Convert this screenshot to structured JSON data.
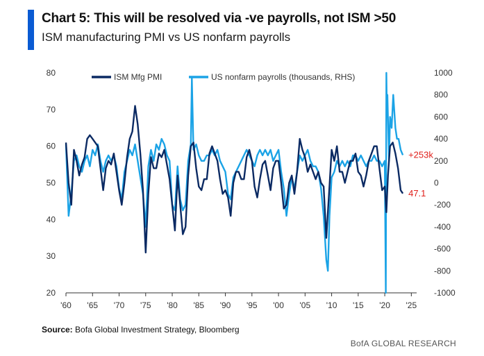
{
  "header": {
    "title": "Chart 5: This will be resolved via -ve payrolls, not ISM >50",
    "subtitle": "ISM manufacturing PMI vs US nonfarm payrolls"
  },
  "footer": {
    "source_label": "Source:",
    "source_text": "Bofa Global Investment Strategy, Bloomberg",
    "brand": "BofA GLOBAL RESEARCH"
  },
  "colors": {
    "ism": "#0b2a63",
    "payrolls": "#1ba3e6",
    "accent": "#0a5bd3",
    "annotation": "#e0201b"
  },
  "chart_data": {
    "type": "line",
    "legend_placement": "top",
    "grid": false,
    "x_ticks": [
      "'60",
      "'65",
      "'70",
      "'75",
      "'80",
      "'85",
      "'90",
      "'95",
      "'00",
      "'05",
      "'10",
      "'15",
      "'20",
      "'25"
    ],
    "y_left": {
      "ylim": [
        20,
        80
      ],
      "ticks": [
        "20",
        "30",
        "40",
        "50",
        "60",
        "70",
        "80"
      ]
    },
    "y_right": {
      "ylim": [
        -1000,
        1000
      ],
      "ticks": [
        "-1000",
        "-800",
        "-600",
        "-400",
        "-200",
        "0",
        "200",
        "400",
        "600",
        "800",
        "1000"
      ]
    },
    "xlim": [
      1960,
      2026
    ],
    "series": [
      {
        "name": "ISM Mfg PMI",
        "axis": "left",
        "x": [
          1960.0,
          1960.5,
          1961.0,
          1961.5,
          1962.0,
          1962.5,
          1963.0,
          1963.5,
          1964.0,
          1964.5,
          1965.0,
          1965.5,
          1966.0,
          1966.5,
          1967.0,
          1967.5,
          1968.0,
          1968.5,
          1969.0,
          1969.5,
          1970.0,
          1970.5,
          1971.0,
          1971.5,
          1972.0,
          1972.5,
          1973.0,
          1973.5,
          1974.0,
          1974.5,
          1975.0,
          1975.5,
          1976.0,
          1976.5,
          1977.0,
          1977.5,
          1978.0,
          1978.5,
          1979.0,
          1979.5,
          1980.0,
          1980.5,
          1981.0,
          1981.5,
          1982.0,
          1982.5,
          1983.0,
          1983.5,
          1984.0,
          1984.5,
          1985.0,
          1985.5,
          1986.0,
          1986.5,
          1987.0,
          1987.5,
          1988.0,
          1988.5,
          1989.0,
          1989.5,
          1990.0,
          1990.5,
          1991.0,
          1991.5,
          1992.0,
          1992.5,
          1993.0,
          1993.5,
          1994.0,
          1994.5,
          1995.0,
          1995.5,
          1996.0,
          1996.5,
          1997.0,
          1997.5,
          1998.0,
          1998.5,
          1999.0,
          1999.5,
          2000.0,
          2000.5,
          2001.0,
          2001.5,
          2002.0,
          2002.5,
          2003.0,
          2003.5,
          2004.0,
          2004.5,
          2005.0,
          2005.5,
          2006.0,
          2006.5,
          2007.0,
          2007.5,
          2008.0,
          2008.5,
          2009.0,
          2009.5,
          2010.0,
          2010.5,
          2011.0,
          2011.5,
          2012.0,
          2012.5,
          2013.0,
          2013.5,
          2014.0,
          2014.5,
          2015.0,
          2015.5,
          2016.0,
          2016.5,
          2017.0,
          2017.5,
          2018.0,
          2018.5,
          2019.0,
          2019.5,
          2020.0,
          2020.3,
          2020.6,
          2021.0,
          2021.5,
          2022.0,
          2022.5,
          2023.0,
          2023.4
        ],
        "values": [
          61,
          50,
          44,
          59,
          56,
          52,
          55,
          57,
          62,
          63,
          62,
          61,
          60,
          54,
          48,
          54,
          56,
          55,
          58,
          53,
          48,
          44,
          50,
          57,
          62,
          64,
          71,
          66,
          58,
          48,
          31,
          47,
          57,
          54,
          54,
          58,
          57,
          59,
          55,
          51,
          44,
          37,
          52,
          44,
          36,
          38,
          52,
          60,
          61,
          54,
          49,
          48,
          51,
          51,
          58,
          60,
          58,
          56,
          51,
          47,
          48,
          46,
          41,
          50,
          53,
          53,
          51,
          51,
          57,
          59,
          56,
          49,
          46,
          51,
          55,
          56,
          52,
          48,
          54,
          56,
          56,
          50,
          43,
          44,
          50,
          52,
          47,
          53,
          62,
          59,
          57,
          53,
          55,
          53,
          51,
          53,
          50,
          49,
          35,
          47,
          59,
          56,
          60,
          53,
          53,
          50,
          53,
          56,
          56,
          58,
          53,
          52,
          49,
          52,
          56,
          58,
          60,
          60,
          54,
          48,
          49,
          42,
          52,
          60,
          61,
          58,
          54,
          48,
          47.1
        ]
      },
      {
        "name": "US nonfarm payrolls (thousands, RHS)",
        "axis": "right",
        "x": [
          1960.0,
          1960.5,
          1961.0,
          1961.5,
          1962.0,
          1962.5,
          1963.0,
          1963.5,
          1964.0,
          1964.5,
          1965.0,
          1965.5,
          1966.0,
          1966.5,
          1967.0,
          1967.5,
          1968.0,
          1968.5,
          1969.0,
          1969.5,
          1970.0,
          1970.5,
          1971.0,
          1971.5,
          1972.0,
          1972.5,
          1973.0,
          1973.5,
          1974.0,
          1974.5,
          1975.0,
          1975.5,
          1976.0,
          1976.5,
          1977.0,
          1977.5,
          1978.0,
          1978.5,
          1979.0,
          1979.5,
          1980.0,
          1980.5,
          1981.0,
          1981.5,
          1982.0,
          1982.5,
          1983.0,
          1983.5,
          1983.7,
          1984.0,
          1984.5,
          1985.0,
          1985.5,
          1986.0,
          1986.5,
          1987.0,
          1987.5,
          1988.0,
          1988.5,
          1989.0,
          1989.5,
          1990.0,
          1990.5,
          1991.0,
          1991.5,
          1992.0,
          1992.5,
          1993.0,
          1993.5,
          1994.0,
          1994.5,
          1995.0,
          1995.5,
          1996.0,
          1996.5,
          1997.0,
          1997.5,
          1998.0,
          1998.5,
          1999.0,
          1999.5,
          2000.0,
          2000.5,
          2001.0,
          2001.5,
          2002.0,
          2002.5,
          2003.0,
          2003.5,
          2004.0,
          2004.5,
          2005.0,
          2005.5,
          2006.0,
          2006.5,
          2007.0,
          2007.5,
          2008.0,
          2008.5,
          2009.0,
          2009.3,
          2009.6,
          2010.0,
          2010.5,
          2011.0,
          2011.5,
          2012.0,
          2012.5,
          2013.0,
          2013.5,
          2014.0,
          2014.5,
          2015.0,
          2015.5,
          2016.0,
          2016.5,
          2017.0,
          2017.5,
          2018.0,
          2018.5,
          2019.0,
          2019.5,
          2020.0,
          2020.2,
          2020.3,
          2020.4,
          2020.5,
          2020.8,
          2021.0,
          2021.3,
          2021.6,
          2022.0,
          2022.3,
          2022.6,
          2023.0,
          2023.4
        ],
        "values": [
          350,
          -300,
          -100,
          200,
          250,
          150,
          100,
          200,
          250,
          150,
          300,
          250,
          350,
          200,
          100,
          200,
          250,
          200,
          250,
          150,
          -50,
          -150,
          100,
          200,
          300,
          250,
          350,
          200,
          50,
          -100,
          -400,
          150,
          300,
          200,
          350,
          300,
          400,
          350,
          250,
          200,
          -200,
          -250,
          150,
          -150,
          -250,
          -200,
          200,
          350,
          950,
          300,
          350,
          250,
          200,
          200,
          250,
          250,
          300,
          250,
          300,
          200,
          150,
          100,
          -100,
          -150,
          50,
          100,
          150,
          200,
          250,
          300,
          250,
          200,
          150,
          250,
          300,
          250,
          300,
          250,
          300,
          200,
          250,
          300,
          100,
          -50,
          -300,
          -100,
          50,
          -50,
          100,
          250,
          200,
          250,
          300,
          200,
          150,
          150,
          100,
          -50,
          -300,
          -700,
          -800,
          -300,
          50,
          100,
          200,
          150,
          200,
          150,
          200,
          150,
          250,
          250,
          200,
          250,
          200,
          150,
          200,
          200,
          250,
          200,
          200,
          150,
          200,
          -1000,
          1000,
          600,
          800,
          200,
          600,
          500,
          800,
          500,
          400,
          400,
          300,
          253
        ]
      }
    ],
    "annotations": [
      {
        "text": "+253k",
        "x": 2023.4,
        "y": 253,
        "axis": "right"
      },
      {
        "text": "47.1",
        "x": 2023.4,
        "y": 47.1,
        "axis": "left"
      }
    ]
  }
}
